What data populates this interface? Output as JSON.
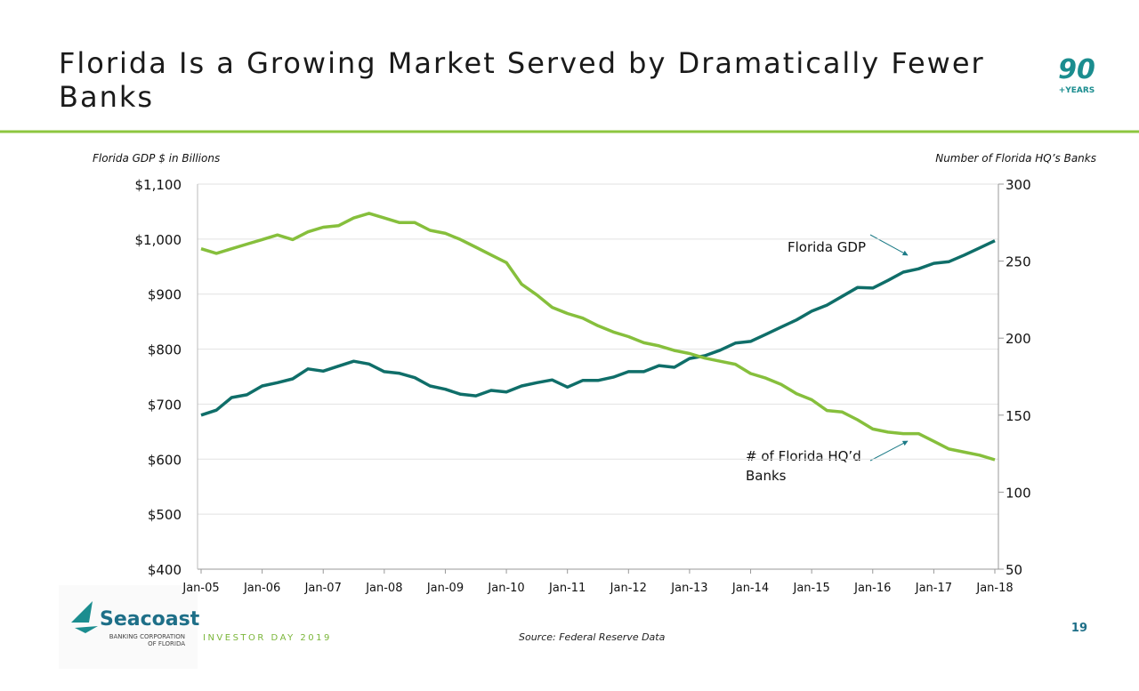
{
  "header": {
    "title": "Florida Is a Growing Market Served by Dramatically Fewer Banks",
    "badge_number": "90",
    "badge_text": "+YEARS"
  },
  "chart_data": {
    "type": "line",
    "y_axis_label": "Florida GDP $ in Billions",
    "y2_axis_label": "Number of Florida HQ’s Banks",
    "categories": [
      "Jan-05",
      null,
      null,
      null,
      "Jan-06",
      null,
      null,
      null,
      "Jan-07",
      null,
      null,
      null,
      "Jan-08",
      null,
      null,
      null,
      "Jan-09",
      null,
      null,
      null,
      "Jan-10",
      null,
      null,
      null,
      "Jan-11",
      null,
      null,
      null,
      "Jan-12",
      null,
      null,
      null,
      "Jan-13",
      null,
      null,
      null,
      "Jan-14",
      null,
      null,
      null,
      "Jan-15",
      null,
      null,
      null,
      "Jan-16",
      null,
      null,
      null,
      "Jan-17",
      null,
      null,
      null,
      "Jan-18"
    ],
    "ylim": [
      400,
      1100
    ],
    "yticks": [
      {
        "value": 400,
        "label": "$400"
      },
      {
        "value": 500,
        "label": "$500"
      },
      {
        "value": 600,
        "label": "$600"
      },
      {
        "value": 700,
        "label": "$700"
      },
      {
        "value": 800,
        "label": "$800"
      },
      {
        "value": 900,
        "label": "$900"
      },
      {
        "value": 1000,
        "label": "$1,000"
      },
      {
        "value": 1100,
        "label": "$1,100"
      }
    ],
    "y2lim": [
      50,
      300
    ],
    "y2ticks": [
      50,
      100,
      150,
      200,
      250,
      300
    ],
    "grid": true,
    "series": [
      {
        "name": "Florida GDP",
        "color": "#0f6e69",
        "axis": "y",
        "values": [
          680,
          689,
          712,
          717,
          733,
          739,
          746,
          764,
          760,
          769,
          778,
          773,
          759,
          756,
          748,
          733,
          727,
          718,
          715,
          725,
          722,
          733,
          739,
          744,
          731,
          743,
          743,
          749,
          759,
          759,
          770,
          767,
          783,
          788,
          798,
          811,
          814,
          827,
          840,
          853,
          869,
          880,
          896,
          912,
          911,
          925,
          940,
          946,
          956,
          959,
          971,
          984,
          997
        ]
      },
      {
        "name": "# of Florida HQ’d Banks",
        "color": "#86bf3c",
        "axis": "y2",
        "values": [
          258,
          255,
          258,
          261,
          264,
          267,
          264,
          269,
          272,
          273,
          278,
          281,
          278,
          275,
          275,
          270,
          268,
          264,
          259,
          254,
          249,
          235,
          228,
          220,
          216,
          213,
          208,
          204,
          201,
          197,
          195,
          192,
          190,
          187,
          185,
          183,
          177,
          174,
          170,
          164,
          160,
          153,
          152,
          147,
          141,
          139,
          138,
          138,
          133,
          128,
          126,
          124,
          121
        ]
      }
    ],
    "source": "Source: Federal Reserve Data"
  },
  "footer": {
    "company": "Seacoast",
    "company_sub1": "BANKING CORPORATION",
    "company_sub2": "OF FLORIDA",
    "event": "INVESTOR DAY 2019",
    "page": "19"
  }
}
